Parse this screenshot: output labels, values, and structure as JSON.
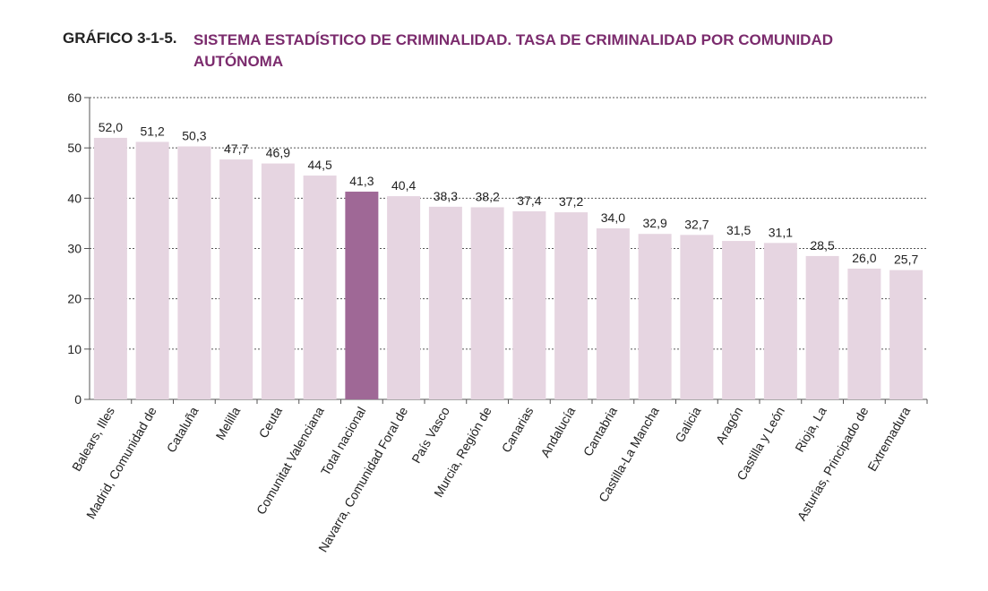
{
  "title_prefix": "GRÁFICO 3-1-5.",
  "chart_data": {
    "type": "bar",
    "title": "SISTEMA ESTADÍSTICO DE CRIMINALIDAD. TASA DE CRIMINALIDAD POR COMUNIDAD AUTÓNOMA",
    "xlabel": "",
    "ylabel": "",
    "ylim": [
      0,
      60
    ],
    "yticks": [
      0,
      10,
      20,
      30,
      40,
      50,
      60
    ],
    "grid": true,
    "categories": [
      "Balears, Illes",
      "Madrid, Comunidad de",
      "Cataluña",
      "Melilla",
      "Ceuta",
      "Comunitat Valenciana",
      "Total nacional",
      "Navarra, Comunidad Foral de",
      "País Vasco",
      "Murcia, Región de",
      "Canarias",
      "Andalucía",
      "Cantabria",
      "Castilla-La Mancha",
      "Galicia",
      "Aragón",
      "Castilla y León",
      "Rioja, La",
      "Asturias, Principado de",
      "Extremadura"
    ],
    "values": [
      52.0,
      51.2,
      50.3,
      47.7,
      46.9,
      44.5,
      41.3,
      40.4,
      38.3,
      38.2,
      37.4,
      37.2,
      34.0,
      32.9,
      32.7,
      31.5,
      31.1,
      28.5,
      26.0,
      25.7
    ],
    "value_labels": [
      "52,0",
      "51,2",
      "50,3",
      "47,7",
      "46,9",
      "44,5",
      "41,3",
      "40,4",
      "38,3",
      "38,2",
      "37,4",
      "37,2",
      "34,0",
      "32,9",
      "32,7",
      "31,5",
      "31,1",
      "28,5",
      "26,0",
      "25,7"
    ],
    "highlight_category": "Total nacional",
    "colors": {
      "bar": "#e6d5e1",
      "highlight": "#9f6896",
      "title": "#7b2b6d",
      "grid": "#555555",
      "axis": "#555555"
    }
  }
}
